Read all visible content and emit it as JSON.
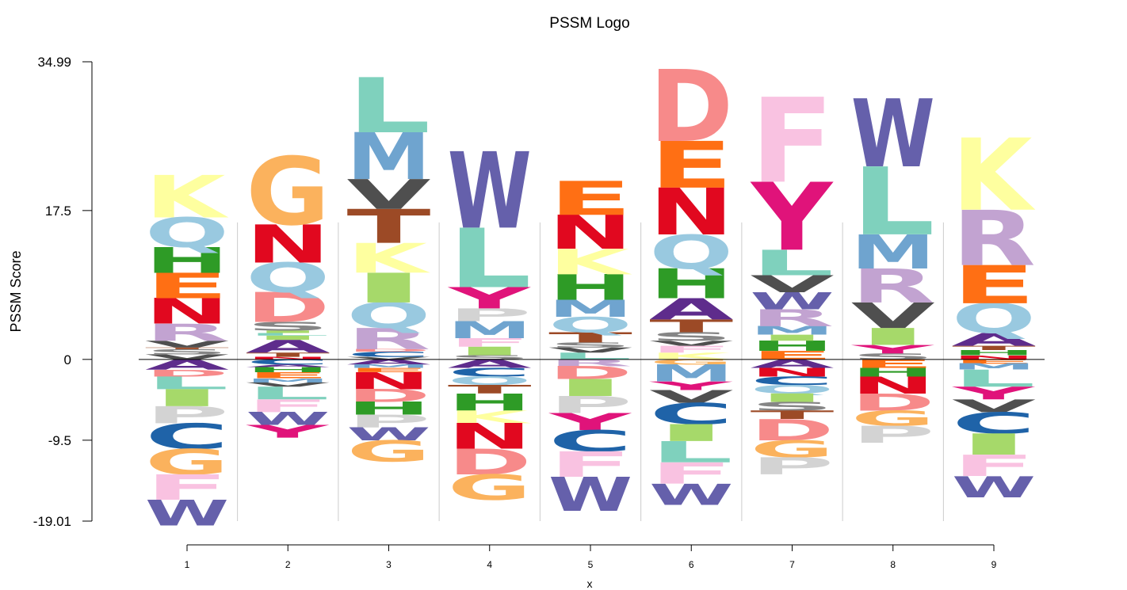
{
  "chart_data": {
    "type": "sequence-logo",
    "title": "PSSM Logo",
    "xlabel": "x",
    "ylabel": "PSSM  Score",
    "ylim": [
      -19.01,
      34.99
    ],
    "yticks": [
      "34.99",
      "17.5",
      "0",
      "-9.5",
      "-19.01"
    ],
    "yticks_values": [
      34.99,
      17.5,
      0,
      -9.5,
      -19.01
    ],
    "xticks": [
      "1",
      "2",
      "3",
      "4",
      "5",
      "6",
      "7",
      "8",
      "9"
    ],
    "zero_line": true,
    "colors": {
      "A": "#5e2c8c",
      "C": "#1f63a8",
      "D": "#f78a8a",
      "E": "#ff6f14",
      "F": "#f9c2e1",
      "G": "#fbb25d",
      "H": "#2e9b26",
      "I": "#a6d96a",
      "K": "#feff9f",
      "L": "#7fd1bd",
      "M": "#6fa4cf",
      "N": "#e1081f",
      "P": "#d3d3d3",
      "Q": "#99c9e0",
      "R": "#c2a3d1",
      "S": "#858585",
      "T": "#9c4a26",
      "V": "#4f4f4f",
      "W": "#6560ab",
      "Y": "#e0137a"
    },
    "positions": [
      {
        "x": "1",
        "positive": [
          [
            "V",
            0.6
          ],
          [
            "S",
            0.6
          ],
          [
            "T",
            0.2
          ],
          [
            "V",
            0.8
          ],
          [
            "R",
            2.0
          ],
          [
            "N",
            3.0
          ],
          [
            "E",
            3.0
          ],
          [
            "H",
            3.0
          ],
          [
            "Q",
            3.5
          ],
          [
            "K",
            5.0
          ]
        ],
        "negative": [
          [
            "A",
            1.2
          ],
          [
            "D",
            0.8
          ],
          [
            "L",
            1.5
          ],
          [
            "I",
            2.0
          ],
          [
            "P",
            2.0
          ],
          [
            "C",
            3.0
          ],
          [
            "G",
            3.0
          ],
          [
            "F",
            3.0
          ],
          [
            "W",
            3.0
          ]
        ]
      },
      {
        "x": "2",
        "positive": [
          [
            "N",
            0.3
          ],
          [
            "T",
            0.5
          ],
          [
            "A",
            1.5
          ],
          [
            "I",
            0.5
          ],
          [
            "L",
            0.3
          ],
          [
            "I",
            0.3
          ],
          [
            "S",
            1.0
          ],
          [
            "D",
            3.5
          ],
          [
            "Q",
            3.5
          ],
          [
            "N",
            4.5
          ],
          [
            "G",
            8.0
          ]
        ],
        "negative": [
          [
            "C",
            0.6
          ],
          [
            "A",
            0.3
          ],
          [
            "H",
            0.6
          ],
          [
            "E",
            0.7
          ],
          [
            "M",
            0.5
          ],
          [
            "V",
            0.5
          ],
          [
            "L",
            1.5
          ],
          [
            "F",
            1.5
          ],
          [
            "W",
            1.5
          ],
          [
            "Y",
            1.5
          ]
        ]
      },
      {
        "x": "3",
        "positive": [
          [
            "V",
            0.3
          ],
          [
            "C",
            0.6
          ],
          [
            "D",
            0.3
          ],
          [
            "R",
            2.5
          ],
          [
            "Q",
            3.0
          ],
          [
            "I",
            3.5
          ],
          [
            "K",
            3.5
          ],
          [
            "T",
            4.0
          ],
          [
            "V",
            3.5
          ],
          [
            "M",
            5.5
          ],
          [
            "L",
            6.5
          ]
        ],
        "negative": [
          [
            "A",
            0.6
          ],
          [
            "M",
            0.4
          ],
          [
            "E",
            0.5
          ],
          [
            "N",
            2.0
          ],
          [
            "D",
            1.5
          ],
          [
            "H",
            1.5
          ],
          [
            "P",
            1.5
          ],
          [
            "W",
            1.5
          ],
          [
            "G",
            2.5
          ]
        ]
      },
      {
        "x": "4",
        "positive": [
          [
            "S",
            0.5
          ],
          [
            "I",
            1.0
          ],
          [
            "F",
            1.0
          ],
          [
            "M",
            2.0
          ],
          [
            "P",
            1.5
          ],
          [
            "Y",
            2.5
          ],
          [
            "L",
            7.0
          ],
          [
            "W",
            9.0
          ]
        ],
        "negative": [
          [
            "A",
            1.0
          ],
          [
            "C",
            1.0
          ],
          [
            "Q",
            1.0
          ],
          [
            "T",
            1.0
          ],
          [
            "H",
            2.0
          ],
          [
            "K",
            1.5
          ],
          [
            "N",
            3.0
          ],
          [
            "D",
            3.0
          ],
          [
            "G",
            3.0
          ]
        ]
      },
      {
        "x": "5",
        "positive": [
          [
            "L",
            0.8
          ],
          [
            "V",
            0.6
          ],
          [
            "S",
            0.6
          ],
          [
            "T",
            1.2
          ],
          [
            "Q",
            1.8
          ],
          [
            "M",
            2.0
          ],
          [
            "H",
            3.0
          ],
          [
            "K",
            3.0
          ],
          [
            "N",
            4.0
          ],
          [
            "E",
            4.0
          ]
        ],
        "negative": [
          [
            "R",
            0.8
          ],
          [
            "D",
            1.5
          ],
          [
            "I",
            2.0
          ],
          [
            "P",
            2.0
          ],
          [
            "Y",
            2.0
          ],
          [
            "C",
            2.5
          ],
          [
            "F",
            3.0
          ],
          [
            "W",
            4.0
          ]
        ]
      },
      {
        "x": "6",
        "positive": [
          [
            "K",
            0.8
          ],
          [
            "F",
            0.8
          ],
          [
            "V",
            0.6
          ],
          [
            "S",
            1.0
          ],
          [
            "T",
            1.5
          ],
          [
            "A",
            2.5
          ],
          [
            "H",
            3.5
          ],
          [
            "Q",
            4.0
          ],
          [
            "N",
            5.5
          ],
          [
            "E",
            5.5
          ],
          [
            "D",
            8.5
          ]
        ],
        "negative": [
          [
            "G",
            0.6
          ],
          [
            "M",
            2.0
          ],
          [
            "Y",
            1.0
          ],
          [
            "V",
            1.5
          ],
          [
            "C",
            2.5
          ],
          [
            "I",
            2.0
          ],
          [
            "L",
            2.5
          ],
          [
            "F",
            2.5
          ],
          [
            "W",
            2.5
          ]
        ]
      },
      {
        "x": "7",
        "positive": [
          [
            "E",
            1.0
          ],
          [
            "H",
            1.2
          ],
          [
            "I",
            0.7
          ],
          [
            "M",
            1.0
          ],
          [
            "R",
            2.0
          ],
          [
            "W",
            2.0
          ],
          [
            "V",
            2.0
          ],
          [
            "L",
            3.0
          ],
          [
            "Y",
            8.0
          ],
          [
            "F",
            10.0
          ]
        ],
        "negative": [
          [
            "A",
            1.0
          ],
          [
            "N",
            1.0
          ],
          [
            "C",
            1.0
          ],
          [
            "Q",
            1.0
          ],
          [
            "I",
            1.0
          ],
          [
            "S",
            1.0
          ],
          [
            "T",
            1.0
          ],
          [
            "D",
            2.5
          ],
          [
            "G",
            2.0
          ],
          [
            "P",
            2.0
          ]
        ]
      },
      {
        "x": "8",
        "positive": [
          [
            "S",
            0.7
          ],
          [
            "Y",
            1.0
          ],
          [
            "I",
            2.0
          ],
          [
            "V",
            3.0
          ],
          [
            "R",
            4.0
          ],
          [
            "M",
            4.0
          ],
          [
            "L",
            8.0
          ],
          [
            "W",
            8.0
          ]
        ],
        "negative": [
          [
            "E",
            1.0
          ],
          [
            "H",
            1.0
          ],
          [
            "N",
            2.0
          ],
          [
            "D",
            2.0
          ],
          [
            "G",
            1.8
          ],
          [
            "P",
            2.0
          ]
        ]
      },
      {
        "x": "9",
        "positive": [
          [
            "N",
            0.5
          ],
          [
            "H",
            0.6
          ],
          [
            "T",
            0.5
          ],
          [
            "A",
            1.5
          ],
          [
            "Q",
            3.5
          ],
          [
            "E",
            4.5
          ],
          [
            "R",
            6.5
          ],
          [
            "K",
            8.5
          ]
        ],
        "negative": [
          [
            "E",
            0.5
          ],
          [
            "M",
            0.7
          ],
          [
            "L",
            2.0
          ],
          [
            "Y",
            1.5
          ],
          [
            "V",
            1.5
          ],
          [
            "C",
            2.5
          ],
          [
            "I",
            2.5
          ],
          [
            "F",
            2.5
          ],
          [
            "W",
            2.5
          ]
        ]
      }
    ]
  }
}
